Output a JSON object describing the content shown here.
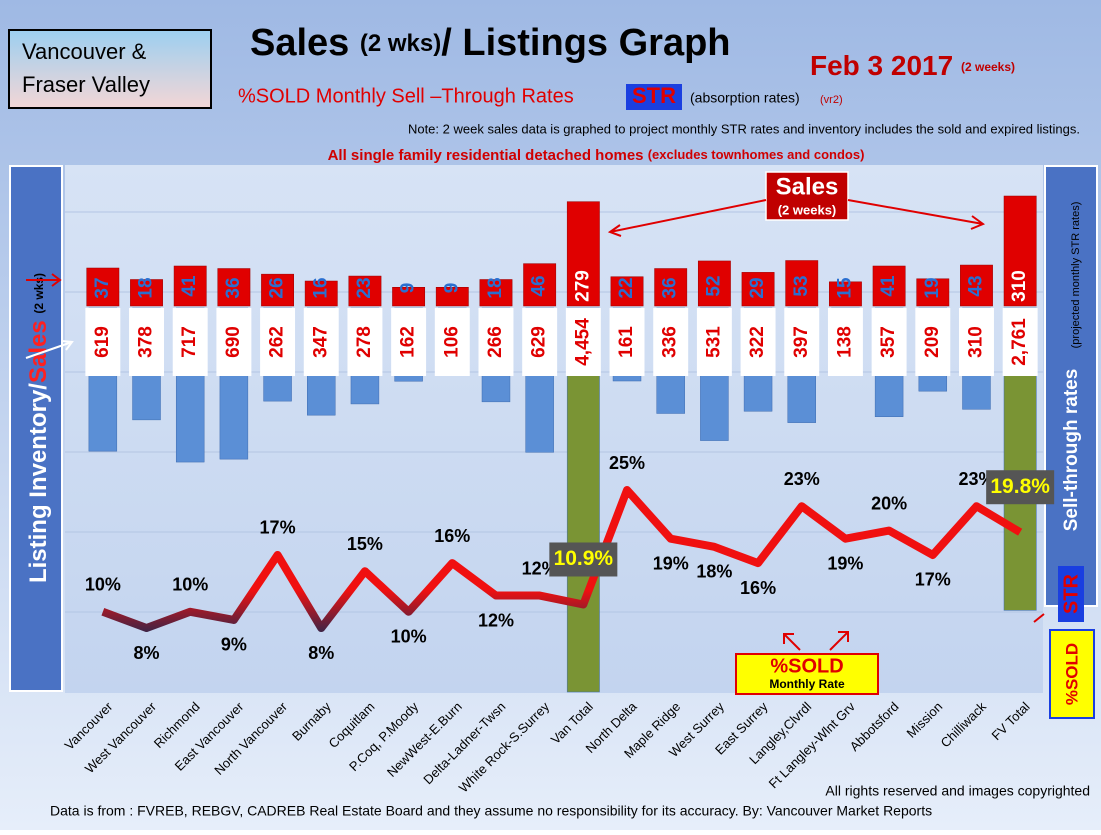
{
  "region": [
    "Vancouver &",
    "Fraser Valley"
  ],
  "header": {
    "title": "Sales",
    "title_note": "(2 wks)",
    "title_rest": "/ Listings Graph",
    "date": "Feb 3 2017",
    "date_note": "(2 weeks)",
    "subtitle": "%SOLD Monthly Sell –Through Rates",
    "str": "STR",
    "str_note": "(absorption rates)",
    "version": "(vr2)",
    "note": "Note: 2 week sales data is graphed to project monthly STR rates and inventory includes the sold and expired listings.",
    "scope": "All single family residential detached homes",
    "scope_note": "(excludes townhomes and condos)"
  },
  "chart_data": {
    "type": "bar-line",
    "y_label": "Listing Inventory/",
    "y_label_sales": "Sales",
    "y_label_note": "(2 wks)",
    "y2_label": "Sell-through rates",
    "y2_label_note": "(projected monthly STR rates)",
    "y2_str": "STR",
    "y2_sold": "%SOLD",
    "annotations": {
      "sales": "Sales",
      "sales_note": "(2 weeks)",
      "sold": "%SOLD",
      "sold_note": "Monthly Rate"
    },
    "categories": [
      "Vancouver",
      "West Vancouver",
      "Richmond",
      "East Vancouver",
      "North Vancouver",
      "Burnaby",
      "Coquitlam",
      "P.Coq, P.Moody",
      "NewWest-E.Burn",
      "Delta-Ladner-Twsn",
      "White Rock-S.Surrey",
      "Van Total",
      "North Delta",
      "Maple Ridge",
      "West Surrey",
      "East Surrey",
      "Langley,Clvrdl",
      "Ft Langley-Wlnt Grv",
      "Abbotsford",
      "Mission",
      "Chilliwack",
      "FV Total"
    ],
    "series": [
      {
        "name": "Sales",
        "color": "#e00000",
        "values": [
          37,
          18,
          41,
          36,
          26,
          16,
          23,
          9,
          9,
          18,
          46,
          279,
          22,
          36,
          52,
          29,
          53,
          15,
          41,
          19,
          43,
          310
        ]
      },
      {
        "name": "Listing Inventory",
        "color": "#5b8fd6",
        "colors": [
          "#5b8fd6",
          "#5b8fd6",
          "#5b8fd6",
          "#5b8fd6",
          "#5b8fd6",
          "#5b8fd6",
          "#5b8fd6",
          "#5b8fd6",
          "#5b8fd6",
          "#5b8fd6",
          "#5b8fd6",
          "#7a9434",
          "#5b8fd6",
          "#5b8fd6",
          "#5b8fd6",
          "#5b8fd6",
          "#5b8fd6",
          "#5b8fd6",
          "#5b8fd6",
          "#5b8fd6",
          "#5b8fd6",
          "#7a9434"
        ],
        "values": [
          619,
          378,
          717,
          690,
          262,
          347,
          278,
          162,
          106,
          266,
          629,
          4454,
          161,
          336,
          531,
          322,
          397,
          138,
          357,
          209,
          310,
          2761
        ],
        "value_labels": [
          "619",
          "378",
          "717",
          "690",
          "262",
          "347",
          "278",
          "162",
          "106",
          "266",
          "629",
          "4,454",
          "161",
          "336",
          "531",
          "322",
          "397",
          "138",
          "357",
          "209",
          "310",
          "2,761"
        ]
      },
      {
        "name": "%SOLD",
        "color": "#ee1111",
        "axis": "y2",
        "values": [
          10,
          8,
          10,
          9,
          17,
          8,
          15,
          10,
          16,
          12,
          12,
          10.9,
          25,
          19,
          18,
          16,
          23,
          19,
          20,
          17,
          23,
          19.8
        ],
        "value_labels": [
          "10%",
          "8%",
          "10%",
          "9%",
          "17%",
          "8%",
          "15%",
          "10%",
          "16%",
          "12%",
          "12%",
          "10.9%",
          "25%",
          "19%",
          "18%",
          "16%",
          "23%",
          "19%",
          "20%",
          "17%",
          "23%",
          "19.8%"
        ]
      }
    ]
  },
  "footer": {
    "rights": "All rights reserved and  images copyrighted",
    "source": "Data is from : FVREB, REBGV, CADREB Real Estate Board and they assume no responsibility for its accuracy. By: Vancouver Market Reports"
  }
}
